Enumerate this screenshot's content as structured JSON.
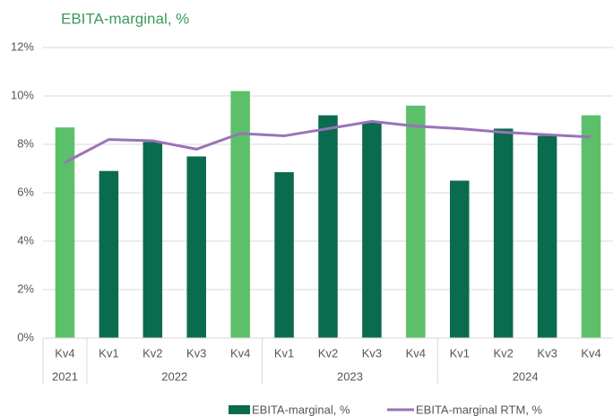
{
  "chart_data": {
    "type": "bar",
    "title": "EBITA-marginal, %",
    "categories": [
      "Kv4",
      "Kv1",
      "Kv2",
      "Kv3",
      "Kv4",
      "Kv1",
      "Kv2",
      "Kv3",
      "Kv4",
      "Kv1",
      "Kv2",
      "Kv3",
      "Kv4"
    ],
    "groups": [
      {
        "label": "2021",
        "size": 1
      },
      {
        "label": "2022",
        "size": 4
      },
      {
        "label": "2023",
        "size": 4
      },
      {
        "label": "2024",
        "size": 4
      }
    ],
    "series": [
      {
        "name": "EBITA-marginal, %",
        "type": "bar",
        "color": "#0b6b4f",
        "colors": [
          "#5cbf6a",
          "#0b6b4f",
          "#0b6b4f",
          "#0b6b4f",
          "#5cbf6a",
          "#0b6b4f",
          "#0b6b4f",
          "#0b6b4f",
          "#5cbf6a",
          "#0b6b4f",
          "#0b6b4f",
          "#0b6b4f",
          "#5cbf6a"
        ],
        "values": [
          8.7,
          6.9,
          8.1,
          7.5,
          10.2,
          6.85,
          9.2,
          8.9,
          9.6,
          6.5,
          8.65,
          8.35,
          9.2
        ]
      },
      {
        "name": "EBITA-marginal RTM, %",
        "type": "line",
        "color": "#9b72b8",
        "values": [
          7.25,
          8.2,
          8.15,
          7.8,
          8.45,
          8.35,
          8.65,
          8.95,
          8.75,
          8.65,
          8.5,
          8.4,
          8.3
        ]
      }
    ],
    "ylim": [
      0,
      12
    ],
    "yticks": [
      {
        "value": 0,
        "label": "0%"
      },
      {
        "value": 2,
        "label": "2%"
      },
      {
        "value": 4,
        "label": "4%"
      },
      {
        "value": 6,
        "label": "6%"
      },
      {
        "value": 8,
        "label": "8%"
      },
      {
        "value": 10,
        "label": "10%"
      },
      {
        "value": 12,
        "label": "12%"
      }
    ],
    "grid": true,
    "legend": "bottom"
  }
}
